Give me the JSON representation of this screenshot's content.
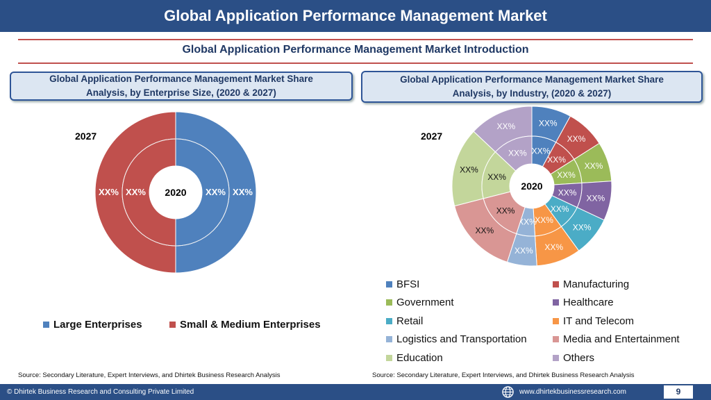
{
  "header": {
    "title": "Global Application Performance Management Market"
  },
  "subtitle": "Global Application Performance Management Market  Introduction",
  "left_panel": {
    "heading_line1": "Global Application Performance Management Market  Share",
    "heading_line2": "Analysis, by Enterprise Size, (2020 & 2027)",
    "outer_year": "2027",
    "inner_year": "2020",
    "legend": [
      {
        "label": "Large Enterprises",
        "color": "#4f81bd"
      },
      {
        "label": "Small & Medium Enterprises",
        "color": "#c0504d"
      }
    ],
    "source": "Source: Secondary Literature, Expert Interviews, and Dhirtek Business Research Analysis"
  },
  "right_panel": {
    "heading_line1": "Global Application Performance Management Market  Share",
    "heading_line2": "Analysis, by Industry, (2020 & 2027)",
    "outer_year": "2027",
    "inner_year": "2020",
    "legend": [
      {
        "label": "BFSI",
        "color": "#4f81bd"
      },
      {
        "label": "Manufacturing",
        "color": "#c0504d"
      },
      {
        "label": "Government",
        "color": "#9bbb59"
      },
      {
        "label": "Healthcare",
        "color": "#8064a2"
      },
      {
        "label": "Retail",
        "color": "#4bacc6"
      },
      {
        "label": "IT and Telecom",
        "color": "#f79646"
      },
      {
        "label": "Logistics and Transportation",
        "color": "#95b3d7"
      },
      {
        "label": "Media and Entertainment",
        "color": "#d99694"
      },
      {
        "label": "Education",
        "color": "#c3d69b"
      },
      {
        "label": "Others",
        "color": "#b3a2c7"
      }
    ],
    "source": "Source: Secondary Literature, Expert Interviews, and Dhirtek Business Research Analysis"
  },
  "chart_data": [
    {
      "type": "pie",
      "variant": "double-donut",
      "categories": [
        "Large Enterprises",
        "Small & Medium Enterprises"
      ],
      "series": [
        {
          "name": "2027",
          "ring": "outer",
          "values": [
            50,
            50
          ],
          "labels": [
            "XX%",
            "XX%"
          ]
        },
        {
          "name": "2020",
          "ring": "inner",
          "values": [
            50,
            50
          ],
          "labels": [
            "XX%",
            "XX%"
          ]
        }
      ],
      "colors": [
        "#4f81bd",
        "#c0504d"
      ],
      "legend_position": "bottom"
    },
    {
      "type": "pie",
      "variant": "double-donut",
      "categories": [
        "BFSI",
        "Manufacturing",
        "Government",
        "Healthcare",
        "Retail",
        "IT and Telecom",
        "Logistics and Transportation",
        "Media and Entertainment",
        "Education",
        "Others"
      ],
      "series": [
        {
          "name": "2027",
          "ring": "outer",
          "values": [
            8,
            8,
            8,
            8,
            8,
            9,
            6,
            16,
            16,
            13
          ],
          "labels": [
            "XX%",
            "XX%",
            "XX%",
            "XX%",
            "XX%",
            "XX%",
            "XX%",
            "XX%",
            "XX%",
            "XX%"
          ]
        },
        {
          "name": "2020",
          "ring": "inner",
          "values": [
            8,
            8,
            8,
            8,
            8,
            9,
            6,
            16,
            16,
            13
          ],
          "labels": [
            "XX%",
            "XX%",
            "XX%",
            "XX%",
            "XX%",
            "XX%",
            "XX%",
            "XX%",
            "XX%",
            "XX%"
          ]
        }
      ],
      "colors": [
        "#4f81bd",
        "#c0504d",
        "#9bbb59",
        "#8064a2",
        "#4bacc6",
        "#f79646",
        "#95b3d7",
        "#d99694",
        "#c3d69b",
        "#b3a2c7"
      ],
      "legend_position": "bottom"
    }
  ],
  "footer": {
    "copyright": "© Dhirtek Business Research and Consulting Private Limited",
    "website": "www.dhirtekbusinessresearch.com",
    "page": "9"
  }
}
